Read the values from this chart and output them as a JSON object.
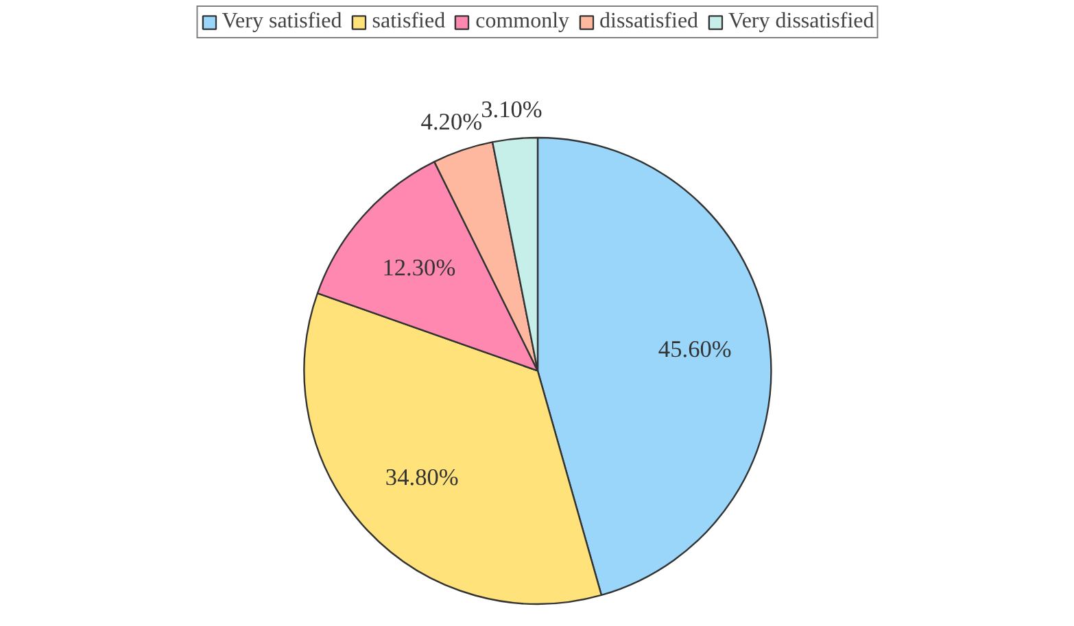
{
  "chart_data": {
    "type": "pie",
    "categories": [
      "Very satisfied",
      "satisfied",
      "commonly",
      "dissatisfied",
      "Very dissatisfied"
    ],
    "values": [
      45.6,
      34.8,
      12.3,
      4.2,
      3.1
    ],
    "colors": [
      "#99d6fa",
      "#ffe27a",
      "#ff88b0",
      "#ffb8a0",
      "#c6efea"
    ],
    "value_labels": [
      "45.60%",
      "34.80%",
      "12.30%",
      "4.20%",
      "3.10%"
    ],
    "legend": "top"
  }
}
